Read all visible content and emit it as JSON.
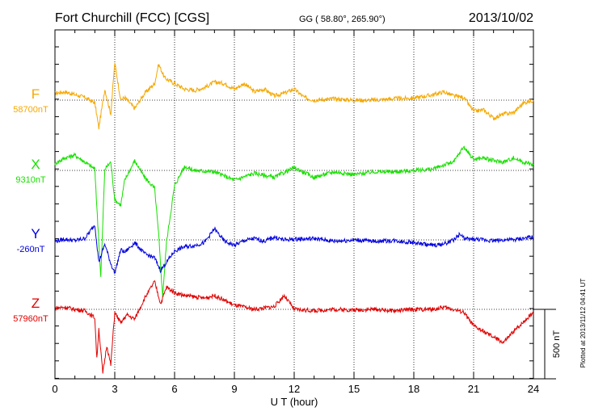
{
  "header": {
    "station": "Fort Churchill (FCC)  [CGS]",
    "coords": "GG ( 58.80°, 265.90°)",
    "date": "2013/10/02"
  },
  "footer_note": "Plotted at 2013/11/12 04:41  UT",
  "colors": {
    "F": "#f5a800",
    "X": "#17e000",
    "Y": "#0000e0",
    "Z": "#e00000"
  },
  "chart_data": {
    "type": "line",
    "xlabel": "U T (hour)",
    "xlim": [
      0,
      24
    ],
    "xticks": [
      "0",
      "3",
      "6",
      "9",
      "12",
      "15",
      "18",
      "21",
      "24"
    ],
    "scale_bar_label": "500 nT",
    "series": [
      {
        "key": "F",
        "name": "F",
        "baseline_label": "58700nT",
        "baseline": 58700,
        "x": [
          0,
          0.5,
          1,
          1.5,
          2,
          2.2,
          2.5,
          2.8,
          3,
          3.3,
          3.5,
          4,
          4.5,
          5,
          5.2,
          5.5,
          6,
          6.5,
          7,
          7.5,
          8,
          8.5,
          9,
          9.5,
          10,
          10.5,
          11,
          11.5,
          12,
          12.5,
          13,
          14,
          15,
          16,
          17,
          18,
          19,
          19.5,
          20,
          20.5,
          21,
          21.5,
          22,
          22.5,
          23,
          23.5,
          24
        ],
        "y": [
          58750,
          58760,
          58740,
          58720,
          58680,
          58500,
          58780,
          58600,
          58970,
          58700,
          58720,
          58640,
          58750,
          58820,
          58960,
          58860,
          58820,
          58780,
          58770,
          58790,
          58830,
          58820,
          58780,
          58820,
          58760,
          58780,
          58730,
          58750,
          58780,
          58720,
          58700,
          58710,
          58700,
          58700,
          58710,
          58715,
          58740,
          58760,
          58730,
          58720,
          58620,
          58630,
          58570,
          58600,
          58610,
          58680,
          58700
        ]
      },
      {
        "key": "X",
        "name": "X",
        "baseline_label": "9310nT",
        "baseline": 9310,
        "x": [
          0,
          0.5,
          1,
          1.5,
          2,
          2.1,
          2.3,
          2.5,
          2.8,
          3,
          3.3,
          3.5,
          4,
          4.5,
          5,
          5.2,
          5.4,
          5.6,
          6,
          6.5,
          7,
          8,
          9,
          10,
          11,
          12,
          13,
          14,
          15,
          16,
          17,
          18,
          19,
          19.5,
          20,
          20.5,
          21,
          21.5,
          22,
          22.5,
          23,
          23.5,
          24
        ],
        "y": [
          9360,
          9400,
          9420,
          9370,
          9320,
          9050,
          8540,
          9320,
          9370,
          9100,
          9060,
          9240,
          9380,
          9260,
          9180,
          8850,
          8400,
          8800,
          9200,
          9340,
          9310,
          9300,
          9240,
          9290,
          9260,
          9330,
          9260,
          9300,
          9280,
          9300,
          9300,
          9310,
          9320,
          9350,
          9370,
          9480,
          9390,
          9400,
          9380,
          9370,
          9400,
          9370,
          9350
        ]
      },
      {
        "key": "Y",
        "name": "Y",
        "baseline_label": "-260nT",
        "baseline": -260,
        "x": [
          0,
          0.5,
          1,
          1.5,
          2,
          2.2,
          2.5,
          2.8,
          3,
          3.3,
          3.5,
          4,
          4.5,
          5,
          5.3,
          5.6,
          6,
          6.5,
          7,
          7.5,
          8,
          8.5,
          9,
          9.5,
          10,
          10.5,
          11,
          11.5,
          12,
          13,
          14,
          15,
          16,
          17,
          18,
          19,
          19.5,
          20,
          20.3,
          20.6,
          21,
          21.5,
          22,
          22.5,
          23,
          23.5,
          24
        ],
        "y": [
          -270,
          -255,
          -265,
          -250,
          -150,
          -420,
          -290,
          -430,
          -500,
          -330,
          -350,
          -280,
          -360,
          -390,
          -480,
          -420,
          -340,
          -310,
          -300,
          -280,
          -180,
          -270,
          -300,
          -265,
          -250,
          -270,
          -240,
          -260,
          -255,
          -250,
          -270,
          -260,
          -270,
          -265,
          -280,
          -300,
          -290,
          -260,
          -220,
          -255,
          -255,
          -260,
          -265,
          -260,
          -260,
          -250,
          -240
        ]
      },
      {
        "key": "Z",
        "name": "Z",
        "baseline_label": "57960nT",
        "baseline": 57960,
        "x": [
          0,
          0.5,
          1,
          1.5,
          2,
          2.1,
          2.2,
          2.4,
          2.6,
          2.8,
          3,
          3.3,
          3.6,
          4,
          4.5,
          5,
          5.3,
          5.6,
          6,
          6.5,
          7,
          7.5,
          8,
          9,
          10,
          11,
          11.5,
          12,
          13,
          14,
          15,
          16,
          17,
          18,
          19,
          19.5,
          20,
          20.5,
          21,
          21.5,
          22,
          22.5,
          23,
          23.5,
          24
        ],
        "y": [
          57970,
          57975,
          57960,
          57950,
          57900,
          57600,
          57820,
          57500,
          57700,
          57560,
          57940,
          57860,
          57920,
          57890,
          58040,
          58160,
          58000,
          58120,
          58080,
          58060,
          58050,
          58040,
          58060,
          57990,
          57960,
          57980,
          58060,
          57960,
          57950,
          57960,
          57955,
          57960,
          57950,
          57960,
          57960,
          57975,
          57960,
          57940,
          57840,
          57800,
          57760,
          57720,
          57800,
          57870,
          57940
        ]
      }
    ]
  }
}
